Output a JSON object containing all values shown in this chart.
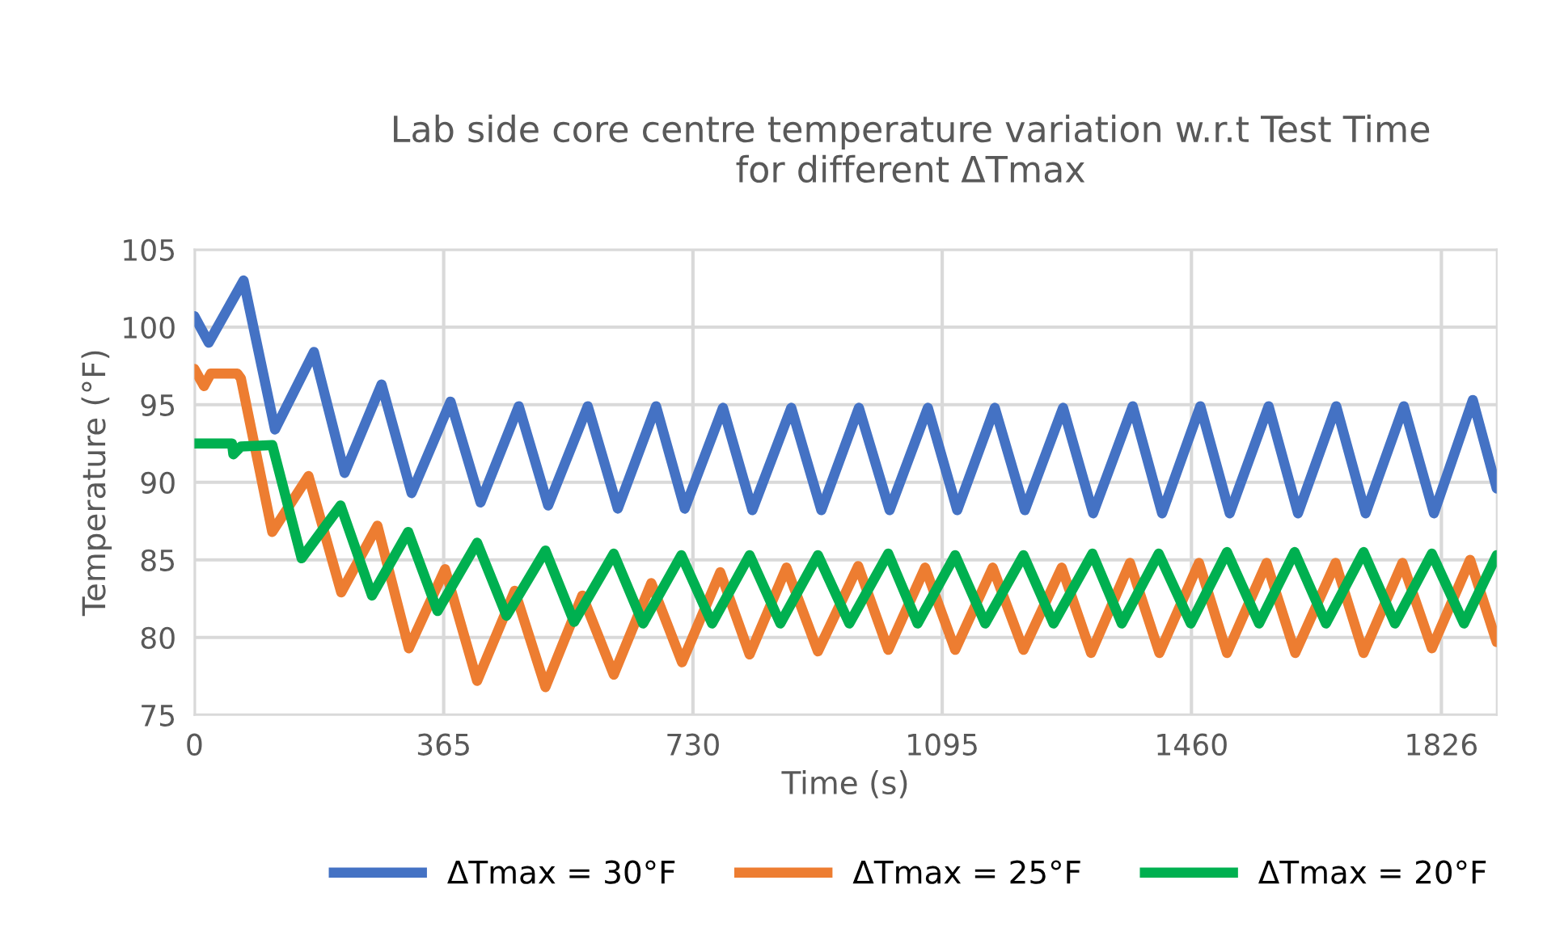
{
  "chart_data": {
    "type": "line",
    "title": "Lab side core centre temperature variation w.r.t Test Time\nfor different ΔTmax",
    "xlabel": "Time (s)",
    "ylabel": "Temperature (°F)",
    "xlim": [
      0,
      1907
    ],
    "xticks": [
      0,
      365,
      730,
      1095,
      1460,
      1826
    ],
    "ylim": [
      75,
      105
    ],
    "yticks": [
      75,
      80,
      85,
      90,
      95,
      100,
      105
    ],
    "grid": true,
    "legend": "bottom",
    "marker": "none",
    "line_style": "solid",
    "series": [
      {
        "name": "ΔTmax = 30°F",
        "color": "#4472c4",
        "x": [
          0,
          21,
          72,
          118,
          175,
          220,
          274,
          318,
          375,
          419,
          475,
          518,
          576,
          620,
          676,
          718,
          774,
          817,
          874,
          918,
          973,
          1018,
          1074,
          1117,
          1172,
          1216,
          1272,
          1316,
          1374,
          1417,
          1473,
          1516,
          1573,
          1616,
          1672,
          1715,
          1771,
          1815,
          1872,
          1907
        ],
        "values": [
          100.7,
          99.0,
          103.0,
          93.4,
          98.4,
          90.6,
          96.3,
          89.3,
          95.2,
          88.7,
          94.9,
          88.5,
          94.9,
          88.3,
          94.9,
          88.3,
          94.8,
          88.2,
          94.8,
          88.2,
          94.8,
          88.2,
          94.8,
          88.2,
          94.8,
          88.2,
          94.8,
          88.0,
          94.9,
          88.0,
          94.9,
          88.0,
          94.9,
          88.0,
          94.9,
          88.0,
          94.9,
          88.0,
          95.3,
          89.6
        ]
      },
      {
        "name": "ΔTmax = 25°F",
        "color": "#ed7d31",
        "x": [
          0,
          14,
          24,
          63,
          68,
          114,
          167,
          215,
          268,
          314,
          367,
          414,
          469,
          514,
          568,
          614,
          669,
          714,
          770,
          813,
          867,
          913,
          972,
          1016,
          1070,
          1114,
          1169,
          1214,
          1270,
          1313,
          1370,
          1413,
          1471,
          1512,
          1570,
          1612,
          1671,
          1712,
          1769,
          1812,
          1868,
          1907
        ],
        "values": [
          97.3,
          96.2,
          97.0,
          97.0,
          96.7,
          86.8,
          90.4,
          82.9,
          87.2,
          79.3,
          84.4,
          77.2,
          83.0,
          76.8,
          82.7,
          77.6,
          83.5,
          78.4,
          84.2,
          78.9,
          84.5,
          79.1,
          84.6,
          79.2,
          84.5,
          79.2,
          84.5,
          79.2,
          84.5,
          79.0,
          84.8,
          79.0,
          84.8,
          79.0,
          84.8,
          79.0,
          84.8,
          79.0,
          84.8,
          79.3,
          85.0,
          79.7
        ]
      },
      {
        "name": "ΔTmax = 20°F",
        "color": "#00b050",
        "x": [
          0,
          55,
          57,
          68,
          114,
          157,
          214,
          260,
          313,
          356,
          414,
          457,
          514,
          556,
          614,
          657,
          713,
          758,
          813,
          858,
          913,
          959,
          1016,
          1059,
          1114,
          1158,
          1214,
          1258,
          1315,
          1358,
          1412,
          1459,
          1512,
          1559,
          1611,
          1657,
          1712,
          1758,
          1812,
          1859,
          1907
        ],
        "values": [
          92.5,
          92.5,
          91.8,
          92.3,
          92.4,
          85.1,
          88.5,
          82.7,
          86.8,
          81.7,
          86.1,
          81.4,
          85.6,
          81.0,
          85.4,
          80.9,
          85.3,
          80.9,
          85.3,
          80.9,
          85.3,
          80.9,
          85.4,
          80.9,
          85.3,
          80.9,
          85.3,
          80.9,
          85.4,
          80.9,
          85.4,
          80.9,
          85.5,
          80.9,
          85.5,
          80.9,
          85.5,
          80.9,
          85.4,
          80.9,
          85.3
        ]
      }
    ]
  }
}
